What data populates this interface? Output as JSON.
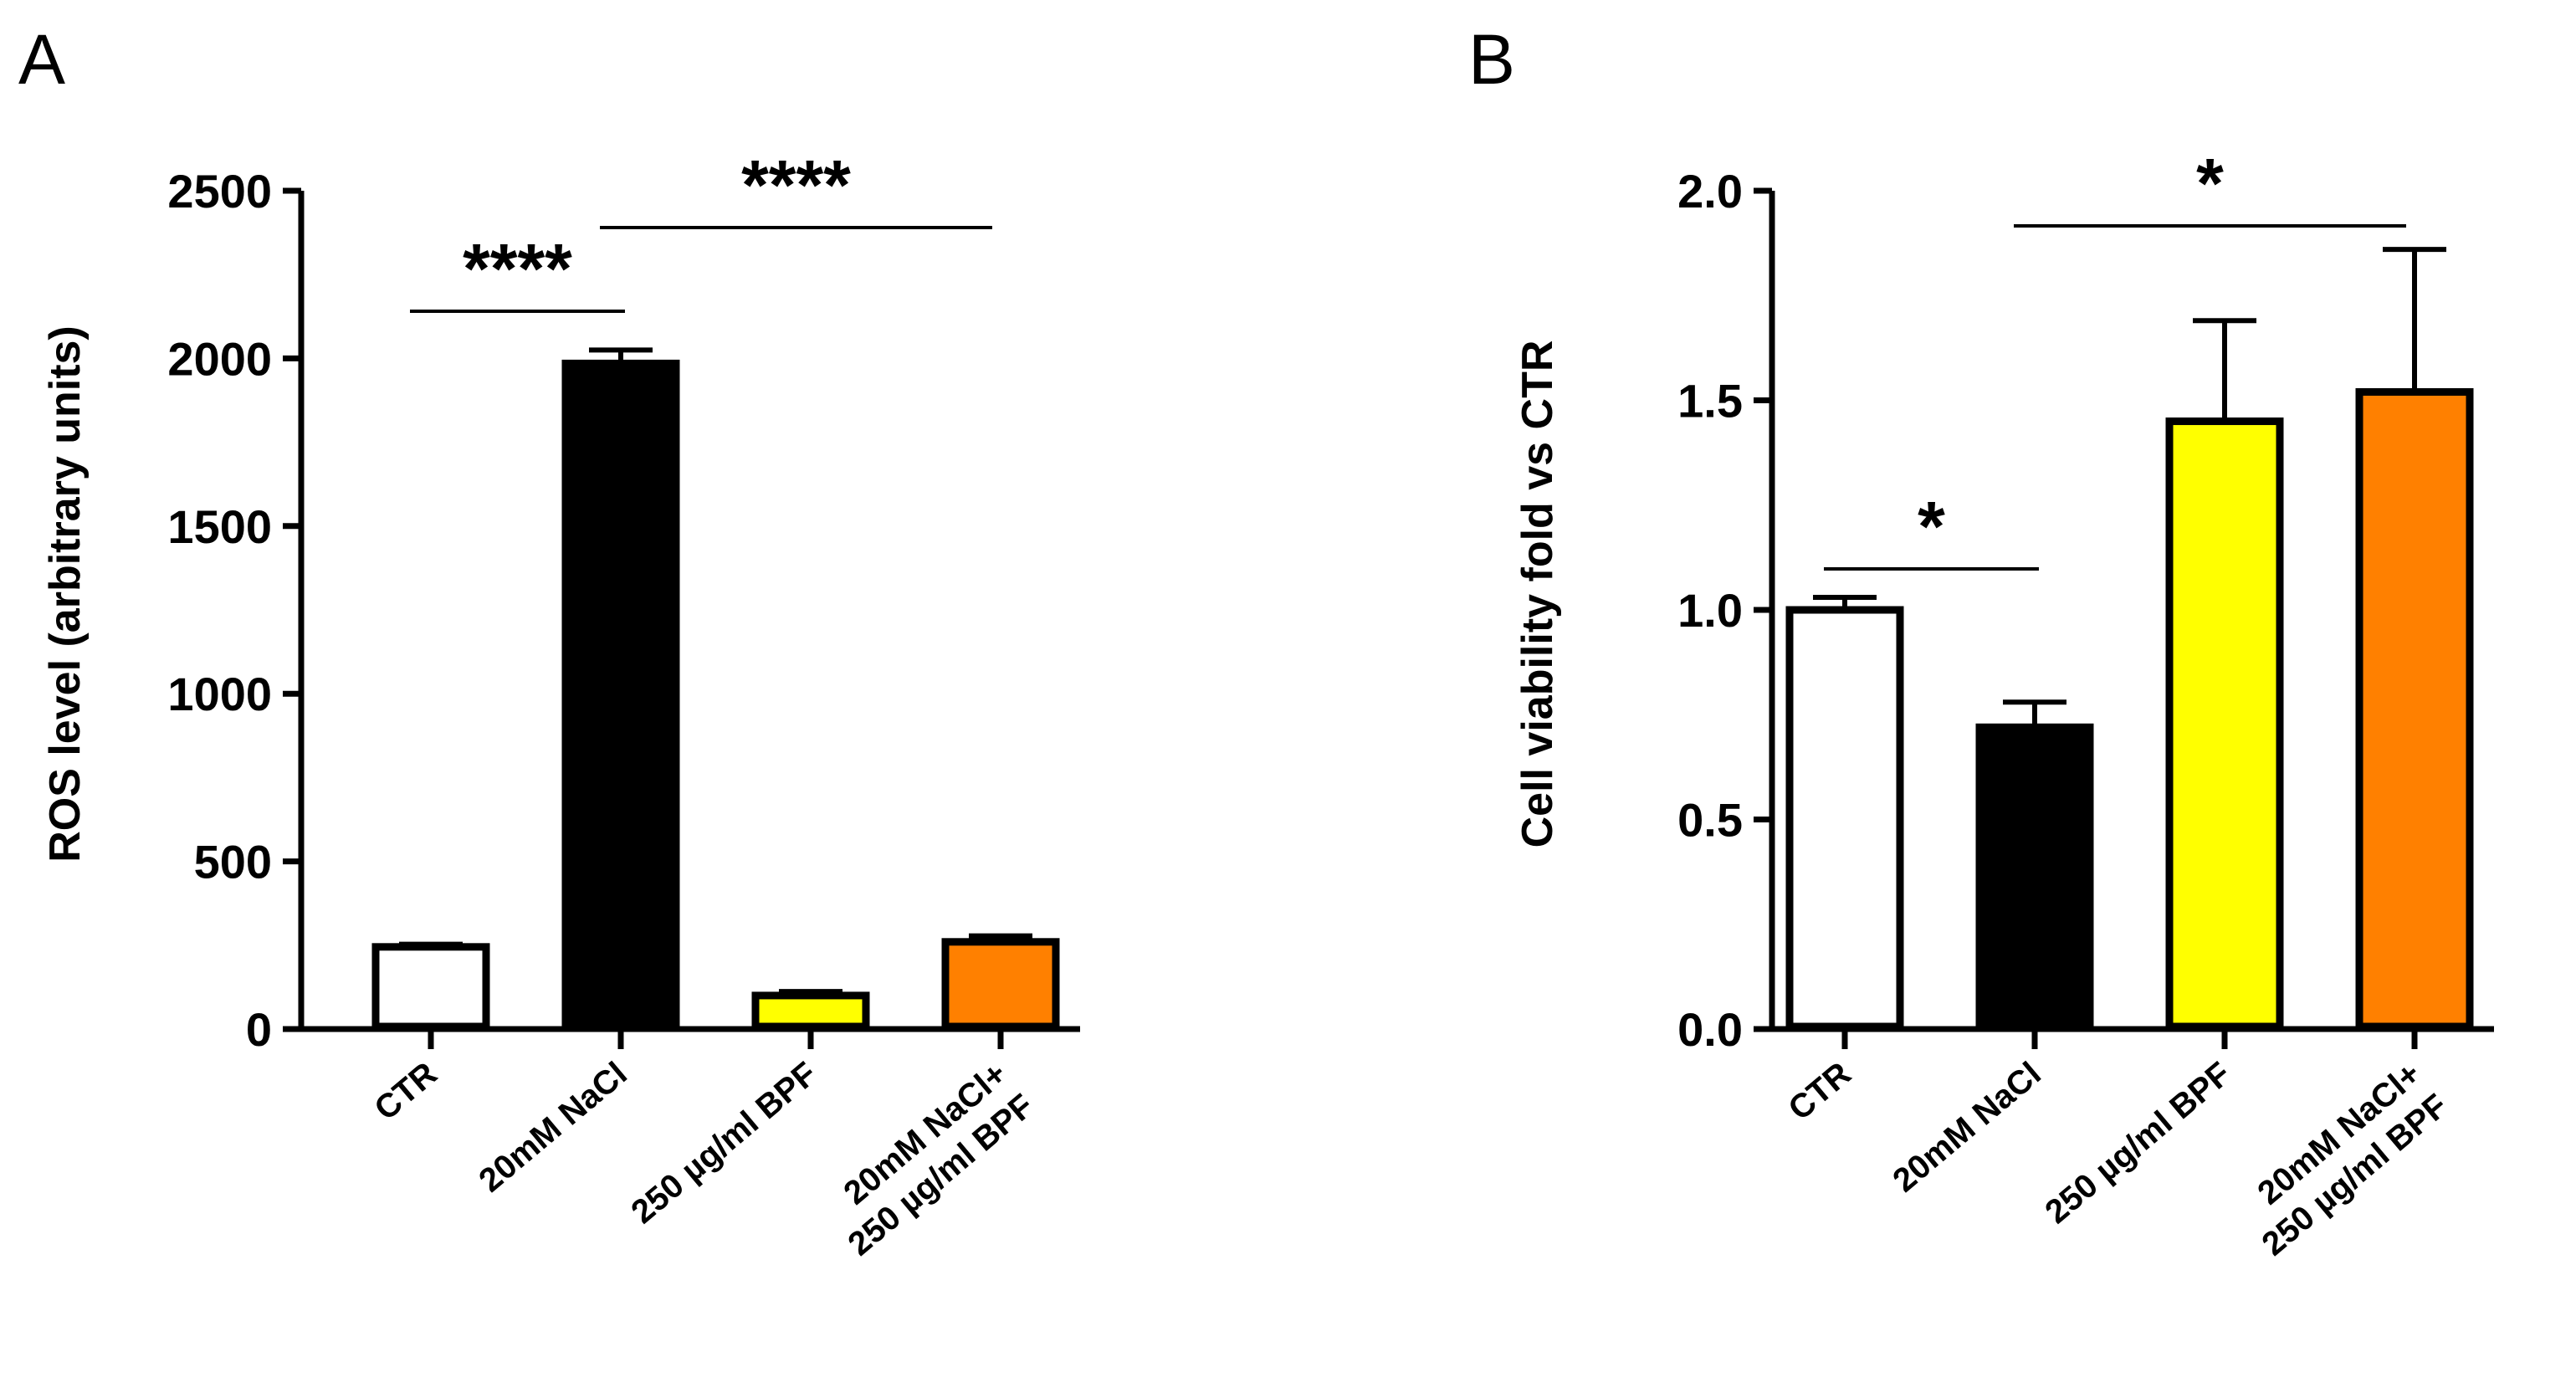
{
  "chart_data": [
    {
      "panel": "A",
      "type": "bar",
      "ylabel": "ROS level (arbitrary units)",
      "ylim": [
        0,
        2500
      ],
      "yticks": [
        "0",
        "500",
        "1000",
        "1500",
        "2000",
        "2500"
      ],
      "ytick_values": [
        0,
        500,
        1000,
        1500,
        2000,
        2500
      ],
      "categories": [
        [
          "CTR"
        ],
        [
          "20mM NaCl"
        ],
        [
          "250 µg/ml BPF"
        ],
        [
          "20mM NaCl+",
          "250 µg/ml BPF"
        ]
      ],
      "values": [
        245,
        1985,
        100,
        260
      ],
      "errors": [
        8,
        40,
        12,
        18
      ],
      "fills": [
        "#ffffff",
        "#000000",
        "#ffff00",
        "#ff8000"
      ],
      "significance": [
        {
          "from": 0,
          "to": 1,
          "label": "****"
        },
        {
          "from": 1,
          "to": 3,
          "label": "****"
        }
      ]
    },
    {
      "panel": "B",
      "type": "bar",
      "ylabel": "Cell viability fold vs CTR",
      "ylim": [
        0,
        2.0
      ],
      "yticks": [
        "0.0",
        "0.5",
        "1.0",
        "1.5",
        "2.0"
      ],
      "ytick_values": [
        0,
        0.5,
        1.0,
        1.5,
        2.0
      ],
      "categories": [
        [
          "CTR"
        ],
        [
          "20mM NaCl"
        ],
        [
          "250 µg/ml BPF"
        ],
        [
          "20mM NaCl+",
          "250 µg/ml BPF"
        ]
      ],
      "values": [
        1.0,
        0.72,
        1.45,
        1.52
      ],
      "errors": [
        0.03,
        0.06,
        0.24,
        0.34
      ],
      "fills": [
        "#ffffff",
        "#000000",
        "#ffff00",
        "#ff8000"
      ],
      "significance": [
        {
          "from": 0,
          "to": 1,
          "label": "*"
        },
        {
          "from": 1,
          "to": 3,
          "label": "*"
        }
      ]
    }
  ]
}
